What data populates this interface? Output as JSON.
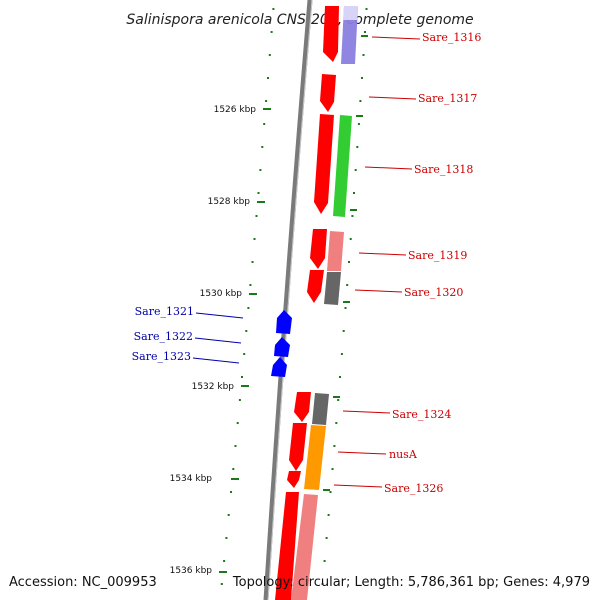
{
  "title": "Salinispora arenicola CNS-205, complete genome",
  "footer": {
    "accession": "Accession: NC_009953",
    "topology": "Topology: circular; Length: 5,786,361 bp; Genes: 4,979"
  },
  "colors": {
    "backbone": "#7a7a7a",
    "tick": "#1a7a1a",
    "forward_label": "#cc0000",
    "reverse_label": "#0000aa",
    "gene_red": "#ff0000",
    "gene_pink": "#f08080",
    "gene_green": "#33cc33",
    "gene_gray": "#666666",
    "gene_orange": "#ff9900",
    "gene_lavender": "#8a80e0",
    "gene_blue": "#0000ff"
  },
  "kbp_labels": [
    {
      "label": "1526 kbp"
    },
    {
      "label": "1528 kbp"
    },
    {
      "label": "1530 kbp"
    },
    {
      "label": "1532 kbp"
    },
    {
      "label": "1534 kbp"
    },
    {
      "label": "1536 kbp"
    }
  ],
  "gene_labels": [
    {
      "text": "Sare_1316",
      "strand": "forward"
    },
    {
      "text": "Sare_1317",
      "strand": "forward"
    },
    {
      "text": "Sare_1318",
      "strand": "forward"
    },
    {
      "text": "Sare_1319",
      "strand": "forward"
    },
    {
      "text": "Sare_1320",
      "strand": "forward"
    },
    {
      "text": "Sare_1321",
      "strand": "reverse"
    },
    {
      "text": "Sare_1322",
      "strand": "reverse"
    },
    {
      "text": "Sare_1323",
      "strand": "reverse"
    },
    {
      "text": "Sare_1324",
      "strand": "forward"
    },
    {
      "text": "nusA",
      "strand": "forward"
    },
    {
      "text": "Sare_1326",
      "strand": "forward"
    }
  ]
}
